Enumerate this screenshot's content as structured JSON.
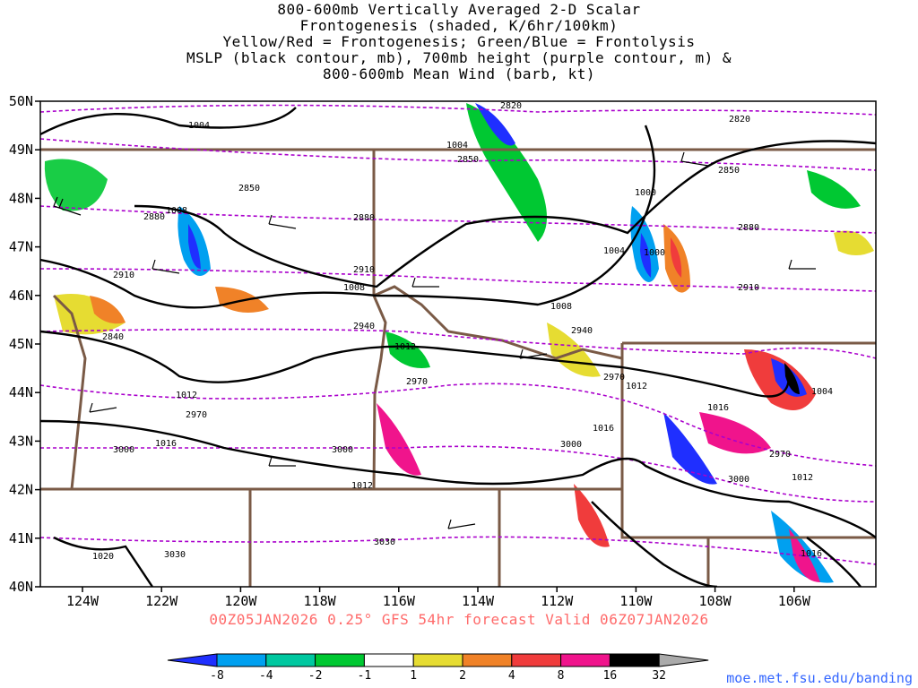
{
  "titles": {
    "line1": "800-600mb Vertically Averaged 2-D Scalar",
    "line2": "Frontogenesis (shaded, K/6hr/100km)",
    "line3": "Yellow/Red = Frontogenesis;  Green/Blue = Frontolysis",
    "line4": "MSLP (black contour, mb), 700mb height (purple contour, m) &",
    "line5": "800-600mb Mean Wind (barb, kt)"
  },
  "lat_labels": [
    "50N",
    "49N",
    "48N",
    "47N",
    "46N",
    "45N",
    "44N",
    "43N",
    "42N",
    "41N",
    "40N"
  ],
  "lon_labels": [
    "124W",
    "122W",
    "120W",
    "118W",
    "116W",
    "114W",
    "112W",
    "110W",
    "108W",
    "106W"
  ],
  "mslp_labels": [
    "1004",
    "1004",
    "1008",
    "1000",
    "1000",
    "1004",
    "1008",
    "1008",
    "1012",
    "1012",
    "1012",
    "1016",
    "1016",
    "1012",
    "1004",
    "1016",
    "1020",
    "1016",
    "1012"
  ],
  "height_labels": [
    "2820",
    "2820",
    "2850",
    "2850",
    "2850",
    "2880",
    "2880",
    "2880",
    "2910",
    "2910",
    "2910",
    "2840",
    "2940",
    "2940",
    "2970",
    "2970",
    "2970",
    "2970",
    "3000",
    "3000",
    "3000",
    "3000",
    "3030",
    "3030"
  ],
  "colorbar": {
    "ticks": [
      "-8",
      "-4",
      "-2",
      "-1",
      "1",
      "2",
      "4",
      "8",
      "16",
      "32"
    ],
    "colors": [
      "#1f2fff",
      "#00a0f0",
      "#00c8a0",
      "#00c832",
      "#ffffff",
      "#e6dc32",
      "#f08228",
      "#f03c3c",
      "#f0148c",
      "#000000",
      "#aaaaaa"
    ]
  },
  "footer": "00Z05JAN2026 0.25° GFS 54hr forecast Valid 06Z07JAN2026",
  "credit": "moe.met.fsu.edu/banding",
  "colors": {
    "mslp": "#000000",
    "height": "#aa00cc",
    "borders": "#7a5a46",
    "footer": "#ff6a6a",
    "credit": "#3366ff"
  }
}
